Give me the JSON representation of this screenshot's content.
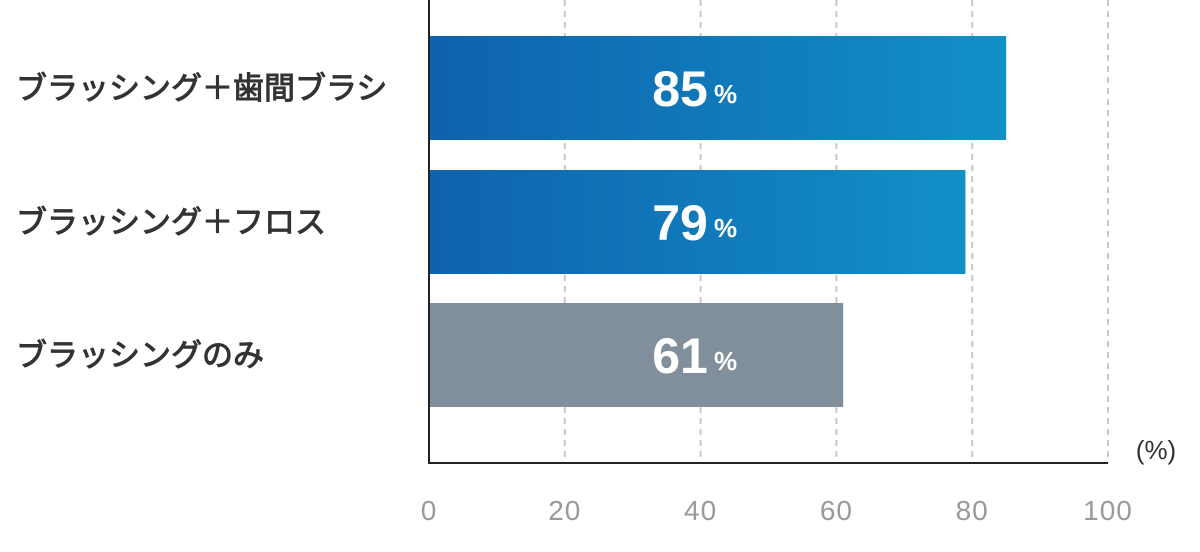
{
  "chart_data": {
    "type": "bar",
    "orientation": "horizontal",
    "categories": [
      "ブラッシング＋歯間ブラシ",
      "ブラッシング＋フロス",
      "ブラッシングのみ"
    ],
    "values": [
      85,
      79,
      61
    ],
    "value_labels": [
      "85",
      "79",
      "61"
    ],
    "value_suffix": "%",
    "xlim": [
      0,
      100
    ],
    "xticks": [
      "0",
      "20",
      "40",
      "60",
      "80",
      "100"
    ],
    "x_unit": "(%)",
    "grid": "vertical dashed",
    "colors": {
      "highlight_start": "#0f62ad",
      "highlight_end": "#1190c6",
      "muted": "#808f9b",
      "gridline": "#c8c8c8",
      "axis": "#222222"
    },
    "bar_styles": [
      "highlight",
      "highlight",
      "muted"
    ]
  }
}
